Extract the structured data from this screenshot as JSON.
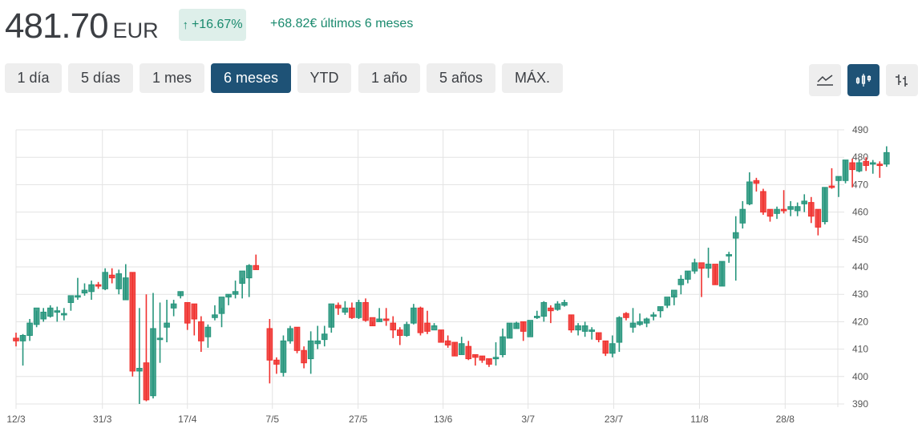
{
  "header": {
    "price": "481.70",
    "currency": "EUR",
    "change_arrow": "↑",
    "change_pct": "+16.67%",
    "change_abs": "+68.82€ últimos 6 meses",
    "positive_color": "#1a8a6e",
    "badge_bg": "#deefea"
  },
  "ranges": [
    {
      "label": "1 día",
      "active": false
    },
    {
      "label": "5 días",
      "active": false
    },
    {
      "label": "1 mes",
      "active": false
    },
    {
      "label": "6 meses",
      "active": true
    },
    {
      "label": "YTD",
      "active": false
    },
    {
      "label": "1 año",
      "active": false
    },
    {
      "label": "5 años",
      "active": false
    },
    {
      "label": "MÁX.",
      "active": false
    }
  ],
  "chart_types": [
    {
      "icon": "line-chart-icon",
      "active": false
    },
    {
      "icon": "candlestick-icon",
      "active": true
    },
    {
      "icon": "ohlc-bar-icon",
      "active": false
    }
  ],
  "colors": {
    "up": "#26957c",
    "down": "#f0312e",
    "accent": "#1e5276",
    "grid": "#e3e3e3"
  },
  "chart_data": {
    "type": "candlestick",
    "title": "",
    "xlabel": "",
    "ylabel": "",
    "ylim": [
      390,
      490
    ],
    "yticks": [
      390,
      400,
      410,
      420,
      430,
      440,
      450,
      460,
      470,
      480,
      490
    ],
    "xticks": [
      {
        "label": "12/3",
        "index": 0
      },
      {
        "label": "31/3",
        "index": 12.6
      },
      {
        "label": "17/4",
        "index": 25
      },
      {
        "label": "7/5",
        "index": 37.4
      },
      {
        "label": "27/5",
        "index": 49.9
      },
      {
        "label": "13/6",
        "index": 62.3
      },
      {
        "label": "3/7",
        "index": 74.7
      },
      {
        "label": "23/7",
        "index": 87.2
      },
      {
        "label": "11/8",
        "index": 99.7
      },
      {
        "label": "28/8",
        "index": 112.2
      }
    ],
    "grid": true,
    "candles": [
      [
        414.0,
        416.0,
        411.0,
        413.0
      ],
      [
        413.0,
        415.5,
        404.0,
        415.0
      ],
      [
        415.0,
        421.0,
        413.0,
        419.5
      ],
      [
        419.0,
        424.0,
        418.0,
        425.0
      ],
      [
        421.0,
        425.0,
        420.0,
        423.5
      ],
      [
        422.0,
        426.0,
        421.5,
        425.0
      ],
      [
        424.0,
        425.5,
        420.0,
        424.0
      ],
      [
        422.5,
        425.0,
        420.5,
        423.0
      ],
      [
        427.0,
        429.0,
        424.0,
        429.5
      ],
      [
        429.0,
        436.0,
        428.0,
        429.5
      ],
      [
        430.5,
        434.0,
        429.5,
        431.5
      ],
      [
        431.0,
        435.0,
        428.0,
        433.5
      ],
      [
        433.5,
        434.5,
        432.0,
        433.0
      ],
      [
        432.0,
        439.5,
        431.5,
        438.0
      ],
      [
        437.0,
        439.5,
        434.0,
        436.0
      ],
      [
        432.0,
        439.0,
        430.0,
        437.5
      ],
      [
        428.0,
        441.0,
        428.0,
        436.0
      ],
      [
        438.0,
        438.0,
        400.0,
        402.0
      ],
      [
        402.0,
        425.0,
        390.0,
        403.0
      ],
      [
        405.0,
        430.0,
        391.0,
        391.5
      ],
      [
        393.0,
        430.5,
        392.0,
        417.5
      ],
      [
        414.0,
        427.0,
        405.0,
        414.0
      ],
      [
        418.0,
        428.0,
        412.5,
        419.5
      ],
      [
        425.0,
        428.0,
        422.0,
        426.5
      ],
      [
        429.5,
        431.0,
        428.5,
        431.0
      ],
      [
        427.0,
        427.0,
        417.0,
        419.5
      ],
      [
        426.5,
        426.5,
        415.0,
        421.0
      ],
      [
        420.0,
        422.0,
        409.0,
        413.0
      ],
      [
        414.5,
        419.0,
        410.5,
        418.0
      ],
      [
        421.5,
        426.0,
        420.5,
        422.5
      ],
      [
        423.0,
        425.0,
        418.0,
        429.0
      ],
      [
        429.0,
        430.0,
        426.0,
        430.0
      ],
      [
        430.0,
        435.0,
        428.5,
        431.0
      ],
      [
        434.0,
        436.0,
        428.5,
        438.5
      ],
      [
        436.0,
        441.0,
        429.0,
        440.5
      ],
      [
        440.5,
        444.5,
        439.0,
        439.0
      ],
      [
        null,
        null,
        null,
        null
      ],
      [
        417.5,
        421.0,
        397.5,
        406.0
      ],
      [
        406.0,
        407.0,
        401.0,
        404.5
      ],
      [
        401.5,
        415.0,
        400.0,
        413.0
      ],
      [
        413.0,
        418.5,
        412.0,
        417.5
      ],
      [
        418.0,
        418.0,
        408.5,
        409.5
      ],
      [
        409.5,
        411.0,
        403.0,
        405.0
      ],
      [
        406.5,
        416.5,
        401.0,
        413.0
      ],
      [
        412.0,
        418.5,
        410.0,
        413.0
      ],
      [
        413.5,
        418.5,
        411.0,
        415.5
      ],
      [
        418.0,
        426.0,
        416.0,
        426.5
      ],
      [
        426.0,
        427.0,
        422.5,
        425.0
      ],
      [
        423.5,
        427.5,
        422.5,
        425.0
      ],
      [
        425.0,
        427.0,
        421.0,
        421.5
      ],
      [
        421.5,
        428.0,
        421.0,
        427.0
      ],
      [
        427.0,
        428.5,
        420.0,
        420.5
      ],
      [
        421.5,
        420.0,
        418.5,
        418.5
      ],
      [
        420.0,
        425.0,
        420.0,
        421.0
      ],
      [
        421.0,
        425.0,
        418.5,
        420.5
      ],
      [
        419.5,
        422.0,
        414.0,
        417.0
      ],
      [
        417.0,
        418.0,
        411.5,
        415.0
      ],
      [
        415.0,
        420.0,
        414.5,
        419.0
      ],
      [
        419.5,
        426.5,
        419.0,
        425.0
      ],
      [
        425.0,
        425.5,
        415.0,
        416.0
      ],
      [
        419.5,
        424.0,
        415.5,
        416.5
      ],
      [
        417.0,
        419.5,
        418.0,
        418.5
      ],
      [
        417.0,
        417.0,
        412.5,
        412.5
      ],
      [
        413.0,
        415.0,
        410.5,
        411.5
      ],
      [
        412.5,
        412.5,
        407.5,
        407.5
      ],
      [
        408.0,
        414.5,
        408.0,
        412.0
      ],
      [
        411.0,
        413.0,
        406.0,
        406.5
      ],
      [
        408.0,
        408.0,
        404.0,
        407.0
      ],
      [
        407.5,
        407.5,
        405.0,
        406.0
      ],
      [
        406.5,
        406.5,
        403.5,
        404.5
      ],
      [
        406.5,
        412.5,
        404.0,
        407.0
      ],
      [
        408.0,
        417.5,
        407.0,
        414.5
      ],
      [
        414.0,
        419.5,
        414.0,
        419.5
      ],
      [
        417.5,
        420.0,
        417.5,
        419.5
      ],
      [
        420.0,
        420.0,
        413.0,
        416.5
      ],
      [
        414.5,
        420.0,
        415.0,
        420.5
      ],
      [
        421.5,
        424.0,
        421.0,
        422.0
      ],
      [
        422.0,
        427.5,
        420.0,
        427.0
      ],
      [
        425.0,
        426.0,
        419.5,
        424.0
      ],
      [
        424.5,
        427.5,
        424.0,
        426.5
      ],
      [
        426.0,
        428.0,
        425.5,
        427.0
      ],
      [
        422.5,
        422.5,
        416.0,
        417.0
      ],
      [
        417.0,
        419.5,
        415.0,
        418.5
      ],
      [
        416.5,
        420.0,
        414.5,
        418.5
      ],
      [
        416.5,
        418.0,
        413.5,
        417.0
      ],
      [
        416.0,
        416.0,
        412.5,
        413.5
      ],
      [
        413.0,
        413.0,
        407.5,
        408.5
      ],
      [
        408.5,
        415.0,
        407.0,
        412.0
      ],
      [
        412.5,
        422.0,
        409.0,
        421.5
      ],
      [
        423.0,
        423.5,
        420.5,
        421.5
      ],
      [
        418.0,
        425.0,
        416.0,
        419.5
      ],
      [
        419.0,
        423.0,
        418.5,
        420.0
      ],
      [
        419.5,
        421.5,
        418.0,
        421.0
      ],
      [
        422.0,
        423.5,
        420.5,
        422.5
      ],
      [
        424.0,
        425.5,
        421.5,
        425.5
      ],
      [
        426.0,
        428.5,
        425.0,
        429.0
      ],
      [
        429.0,
        430.0,
        426.0,
        431.5
      ],
      [
        433.5,
        437.0,
        430.0,
        435.5
      ],
      [
        435.5,
        438.5,
        434.0,
        438.5
      ],
      [
        438.5,
        443.0,
        437.5,
        441.5
      ],
      [
        441.5,
        440.0,
        429.0,
        439.5
      ],
      [
        439.5,
        447.0,
        436.0,
        441.0
      ],
      [
        441.0,
        440.5,
        433.5,
        433.5
      ],
      [
        433.0,
        442.0,
        433.0,
        442.0
      ],
      [
        444.5,
        445.5,
        441.5,
        444.5
      ],
      [
        450.5,
        458.5,
        435.0,
        452.5
      ],
      [
        456.0,
        464.0,
        454.0,
        461.0
      ],
      [
        463.0,
        474.5,
        462.5,
        471.0
      ],
      [
        471.5,
        472.5,
        467.5,
        470.5
      ],
      [
        467.5,
        468.5,
        459.0,
        460.0
      ],
      [
        461.0,
        461.0,
        456.5,
        458.5
      ],
      [
        459.5,
        462.0,
        457.5,
        461.0
      ],
      [
        461.0,
        468.0,
        459.5,
        460.5
      ],
      [
        461.0,
        464.0,
        458.5,
        462.0
      ],
      [
        460.5,
        463.5,
        458.5,
        462.0
      ],
      [
        463.0,
        466.5,
        460.0,
        464.0
      ],
      [
        463.5,
        465.5,
        456.0,
        458.5
      ],
      [
        461.0,
        461.0,
        451.5,
        454.5
      ],
      [
        456.5,
        469.0,
        455.5,
        469.0
      ],
      [
        469.5,
        476.0,
        468.5,
        469.0
      ],
      [
        471.5,
        473.0,
        465.5,
        473.0
      ],
      [
        471.5,
        479.0,
        470.5,
        479.0
      ],
      [
        478.0,
        479.5,
        469.0,
        475.5
      ],
      [
        475.0,
        479.0,
        474.5,
        478.0
      ],
      [
        478.5,
        480.0,
        475.0,
        477.0
      ],
      [
        478.0,
        479.0,
        474.0,
        478.0
      ],
      [
        477.5,
        478.5,
        472.5,
        477.0
      ],
      [
        477.5,
        484.0,
        476.5,
        481.7
      ]
    ]
  }
}
